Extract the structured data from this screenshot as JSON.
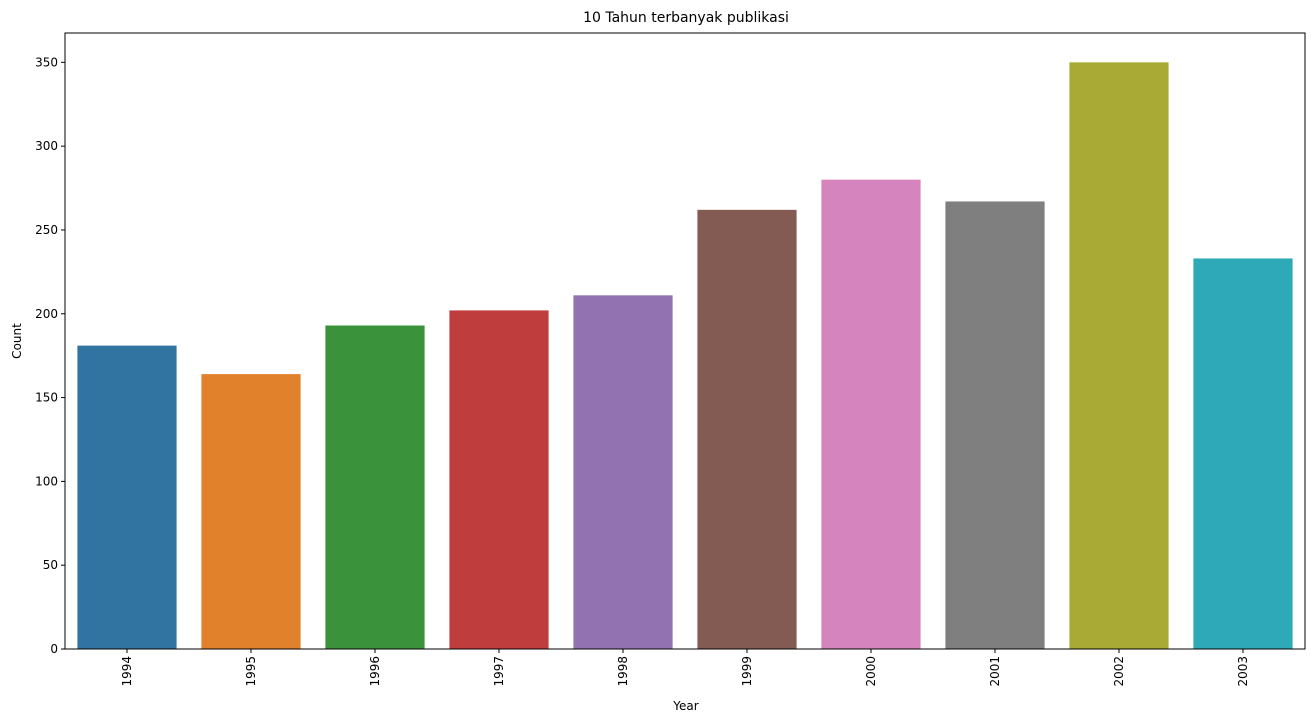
{
  "chart_data": {
    "type": "bar",
    "title": "10 Tahun terbanyak publikasi",
    "xlabel": "Year",
    "ylabel": "Count",
    "categories": [
      "1994",
      "1995",
      "1996",
      "1997",
      "1998",
      "1999",
      "2000",
      "2001",
      "2002",
      "2003"
    ],
    "values": [
      181,
      164,
      193,
      202,
      211,
      262,
      280,
      267,
      350,
      233
    ],
    "colors": [
      "#3274a1",
      "#e1812c",
      "#3a923a",
      "#c03d3e",
      "#9372b2",
      "#845b53",
      "#d684bd",
      "#7f7f7f",
      "#a9aa35",
      "#2ea9b8"
    ],
    "ylim": [
      0,
      367.5
    ],
    "yticks": [
      0,
      50,
      100,
      150,
      200,
      250,
      300,
      350
    ],
    "grid": false,
    "xtick_rotation": 90
  }
}
